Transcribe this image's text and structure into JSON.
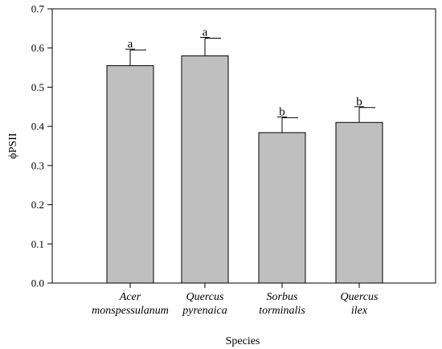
{
  "chart_data": {
    "type": "bar",
    "title": "",
    "xlabel": "Species",
    "ylabel": "ϕPSII",
    "ylim": [
      0,
      0.7
    ],
    "yticks": [
      0.0,
      0.1,
      0.2,
      0.3,
      0.4,
      0.5,
      0.6,
      0.7
    ],
    "ytick_labels": [
      "0.0",
      "0.1",
      "0.2",
      "0.3",
      "0.4",
      "0.5",
      "0.6",
      "0.7"
    ],
    "categories": [
      [
        "Acer",
        "monspessulanum"
      ],
      [
        "Quercus",
        "pyrenaica"
      ],
      [
        "Sorbus",
        "torminalis"
      ],
      [
        "Quercus",
        "ilex"
      ]
    ],
    "values": [
      0.555,
      0.58,
      0.384,
      0.41
    ],
    "errors": [
      0.04,
      0.045,
      0.038,
      0.038
    ],
    "significance": [
      "a",
      "a",
      "b",
      "b"
    ],
    "bar_color": "#bfbfbf",
    "edge_color": "#000000",
    "grid": false,
    "legend": "none"
  }
}
